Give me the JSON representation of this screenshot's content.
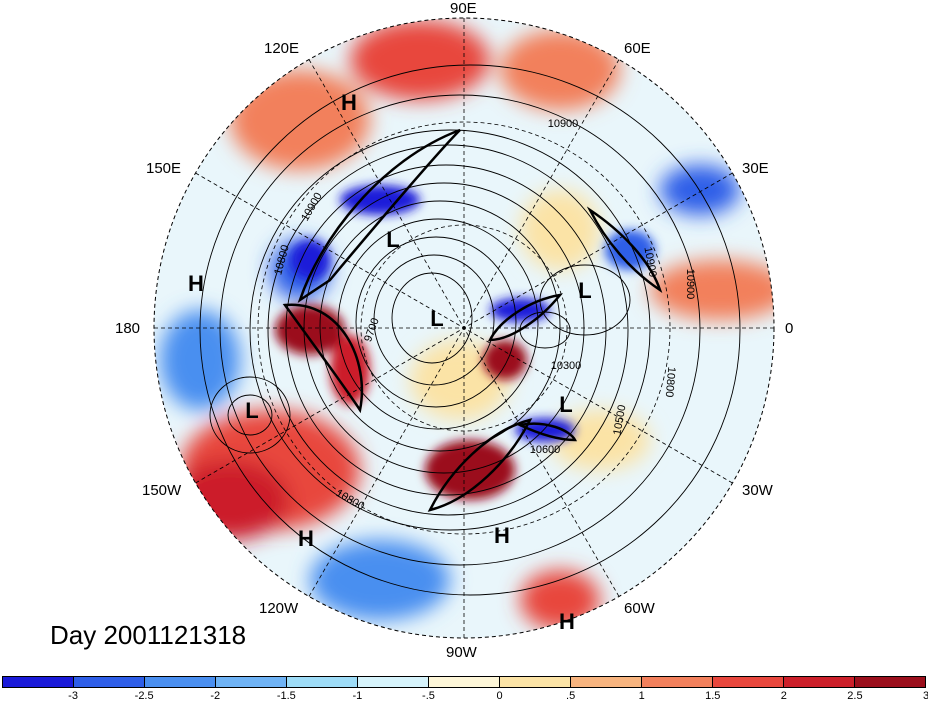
{
  "title": "Day 2001121318",
  "longitude_labels": [
    "90E",
    "60E",
    "30E",
    "0",
    "30W",
    "60W",
    "90W",
    "120W",
    "150W",
    "180",
    "150E",
    "120E"
  ],
  "pressure_systems": [
    "H",
    "H",
    "L",
    "L",
    "L",
    "L",
    "L",
    "H",
    "H",
    "H"
  ],
  "contour_labels": [
    "10900",
    "10900",
    "10900",
    "10800",
    "10900",
    "10800",
    "10300",
    "10500",
    "10600",
    "10800",
    "9700"
  ],
  "colorbar": {
    "tick_labels": [
      "-3",
      "-2.5",
      "-2",
      "-1.5",
      "-1",
      "-.5",
      "0",
      ".5",
      "1",
      "1.5",
      "2",
      "2.5",
      "3"
    ],
    "colors": [
      "#1a1ad9",
      "#2e5ee8",
      "#4a8ff0",
      "#6fb3f5",
      "#9edcf7",
      "#d6f3fb",
      "#fdf6d8",
      "#fbe3a6",
      "#f7b47f",
      "#f2805c",
      "#e8473d",
      "#cc1f2a",
      "#9b0f1c"
    ]
  }
}
